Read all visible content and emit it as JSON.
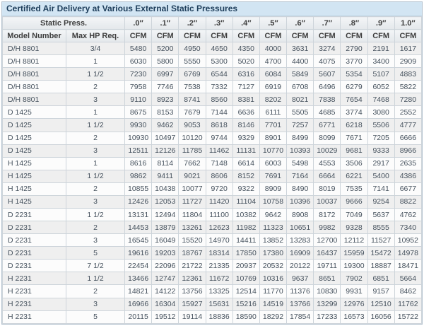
{
  "chart_data": {
    "type": "table",
    "title": "Certified Air Delivery at Various External Static Pressures",
    "header": {
      "static_press_label": "Static Press.",
      "pressures": [
        ".0″",
        ".1″",
        ".2″",
        ".3″",
        ".4″",
        ".5″",
        ".6″",
        ".7″",
        ".8″",
        ".9″",
        "1.0″"
      ],
      "model_label": "Model Number",
      "hp_label": "Max HP Req.",
      "unit_label": "CFM"
    },
    "rows": [
      {
        "model": "D/H 8801",
        "hp": "3/4",
        "cfm": [
          5480,
          5200,
          4950,
          4650,
          4350,
          4000,
          3631,
          3274,
          2790,
          2191,
          1617
        ]
      },
      {
        "model": "D/H 8801",
        "hp": "1",
        "cfm": [
          6030,
          5800,
          5550,
          5300,
          5020,
          4700,
          4400,
          4075,
          3770,
          3400,
          2909
        ]
      },
      {
        "model": "D/H 8801",
        "hp": "1 1/2",
        "cfm": [
          7230,
          6997,
          6769,
          6544,
          6316,
          6084,
          5849,
          5607,
          5354,
          5107,
          4883
        ]
      },
      {
        "model": "D/H 8801",
        "hp": "2",
        "cfm": [
          7958,
          7746,
          7538,
          7332,
          7127,
          6919,
          6708,
          6496,
          6279,
          6052,
          5822
        ]
      },
      {
        "model": "D/H 8801",
        "hp": "3",
        "cfm": [
          9110,
          8923,
          8741,
          8560,
          8381,
          8202,
          8021,
          7838,
          7654,
          7468,
          7280
        ]
      },
      {
        "model": "D 1425",
        "hp": "1",
        "cfm": [
          8675,
          8153,
          7679,
          7144,
          6636,
          6111,
          5505,
          4685,
          3774,
          3080,
          2552
        ]
      },
      {
        "model": "D 1425",
        "hp": "1 1/2",
        "cfm": [
          9930,
          9462,
          9053,
          8618,
          8146,
          7701,
          7257,
          6771,
          6218,
          5506,
          4777
        ]
      },
      {
        "model": "D 1425",
        "hp": "2",
        "cfm": [
          10930,
          10497,
          10120,
          9744,
          9329,
          8901,
          8499,
          8099,
          7671,
          7205,
          6666
        ]
      },
      {
        "model": "D 1425",
        "hp": "3",
        "cfm": [
          12511,
          12126,
          11785,
          11462,
          11131,
          10770,
          10393,
          10029,
          9681,
          9333,
          8966
        ]
      },
      {
        "model": "H 1425",
        "hp": "1",
        "cfm": [
          8616,
          8114,
          7662,
          7148,
          6614,
          6003,
          5498,
          4553,
          3506,
          2917,
          2635
        ]
      },
      {
        "model": "H 1425",
        "hp": "1 1/2",
        "cfm": [
          9862,
          9411,
          9021,
          8606,
          8152,
          7691,
          7164,
          6664,
          6221,
          5400,
          4386
        ]
      },
      {
        "model": "H 1425",
        "hp": "2",
        "cfm": [
          10855,
          10438,
          10077,
          9720,
          9322,
          8909,
          8490,
          8019,
          7535,
          7141,
          6677
        ]
      },
      {
        "model": "H 1425",
        "hp": "3",
        "cfm": [
          12426,
          12053,
          11727,
          11420,
          11104,
          10758,
          10396,
          10037,
          9666,
          9254,
          8822
        ]
      },
      {
        "model": "D 2231",
        "hp": "1 1/2",
        "cfm": [
          13131,
          12494,
          11804,
          11100,
          10382,
          9642,
          8908,
          8172,
          7049,
          5637,
          4762
        ]
      },
      {
        "model": "D 2231",
        "hp": "2",
        "cfm": [
          14453,
          13879,
          13261,
          12623,
          11982,
          11323,
          10651,
          9982,
          9328,
          8555,
          7340
        ]
      },
      {
        "model": "D 2231",
        "hp": "3",
        "cfm": [
          16545,
          16049,
          15520,
          14970,
          14411,
          13852,
          13283,
          12700,
          12112,
          11527,
          10952
        ]
      },
      {
        "model": "D 2231",
        "hp": "5",
        "cfm": [
          19616,
          19203,
          18767,
          18314,
          17850,
          17380,
          16909,
          16437,
          15959,
          15472,
          14978
        ]
      },
      {
        "model": "D 2231",
        "hp": "7 1/2",
        "cfm": [
          22454,
          22096,
          21722,
          21335,
          20937,
          20532,
          20122,
          19711,
          19300,
          18887,
          18471
        ]
      },
      {
        "model": "H 2231",
        "hp": "1 1/2",
        "cfm": [
          13466,
          12747,
          12361,
          11672,
          10769,
          10316,
          9637,
          8651,
          7902,
          6851,
          5664
        ]
      },
      {
        "model": "H 2231",
        "hp": "2",
        "cfm": [
          14821,
          14122,
          13756,
          13325,
          12514,
          11770,
          11376,
          10830,
          9931,
          9157,
          8462
        ]
      },
      {
        "model": "H 2231",
        "hp": "3",
        "cfm": [
          16966,
          16304,
          15927,
          15631,
          15216,
          14519,
          13766,
          13299,
          12976,
          12510,
          11762
        ]
      },
      {
        "model": "H 2231",
        "hp": "5",
        "cfm": [
          20115,
          19512,
          19114,
          18836,
          18590,
          18292,
          17854,
          17233,
          16573,
          16056,
          15722
        ]
      }
    ]
  },
  "colors": {
    "title_bg": "#d2e5f3",
    "title_text": "#1d3d5a",
    "header_bg": "#ebeef1",
    "row_alt_bg": "#efefef",
    "row_bg": "#fcfcfc",
    "border": "#cdd4da",
    "data_text": "#46525e"
  }
}
